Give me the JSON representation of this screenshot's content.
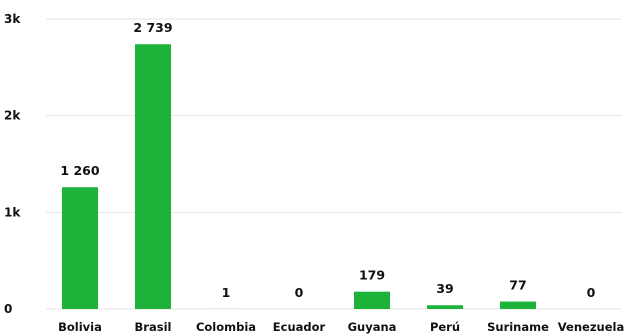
{
  "chart_data": {
    "type": "bar",
    "categories": [
      "Bolivia",
      "Brasil",
      "Colombia",
      "Ecuador",
      "Guyana",
      "Perú",
      "Suriname",
      "Venezuela"
    ],
    "values": [
      1260,
      2739,
      1,
      0,
      179,
      39,
      77,
      0
    ],
    "value_labels": [
      "1 260",
      "2 739",
      "1",
      "0",
      "179",
      "39",
      "77",
      "0"
    ],
    "ylim": [
      0,
      3000
    ],
    "y_ticks": [
      0,
      1000,
      2000,
      3000
    ],
    "y_tick_labels": [
      "0",
      "1k",
      "2k",
      "3k"
    ],
    "grid": true,
    "bar_color": "#1db33a",
    "title": "",
    "xlabel": "",
    "ylabel": ""
  }
}
